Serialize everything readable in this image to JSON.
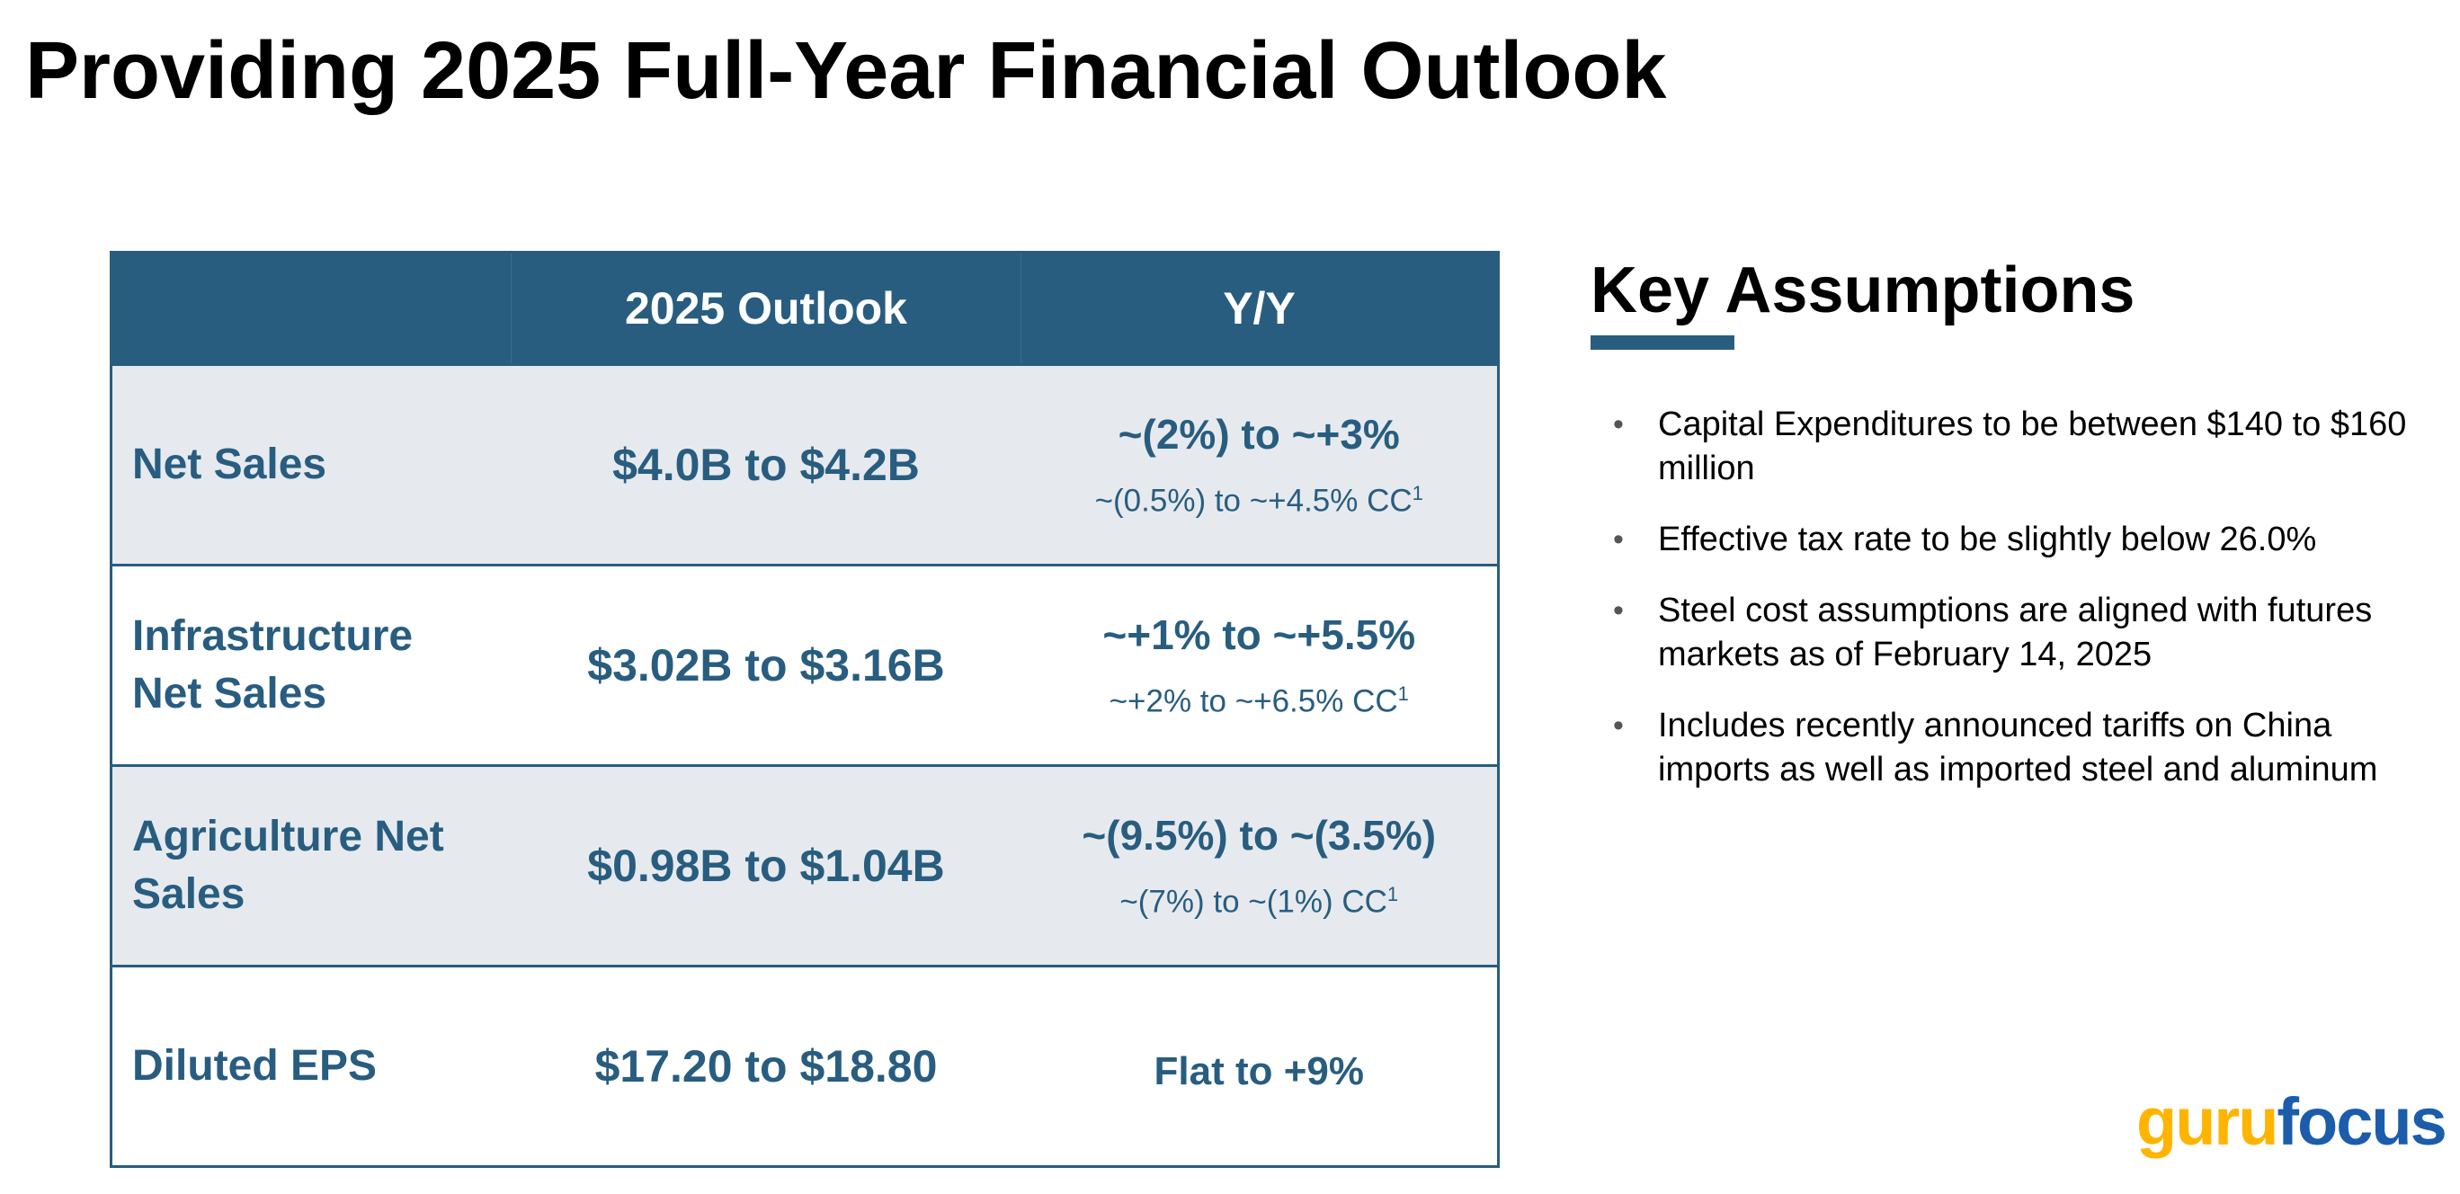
{
  "title": "Providing 2025 Full-Year Financial Outlook",
  "table": {
    "headers": [
      "",
      "2025 Outlook",
      "Y/Y"
    ],
    "rows": [
      {
        "label": "Net Sales",
        "outlook": "$4.0B to $4.2B",
        "yy": "~(2%) to ~+3%",
        "cc": "~(0.5%) to ~+4.5% CC",
        "cc_note": "1"
      },
      {
        "label": "Infrastructure Net Sales",
        "outlook": "$3.02B to $3.16B",
        "yy": "~+1% to ~+5.5%",
        "cc": "~+2% to ~+6.5% CC",
        "cc_note": "1"
      },
      {
        "label": "Agriculture Net Sales",
        "outlook": "$0.98B to $1.04B",
        "yy": "~(9.5%) to ~(3.5%)",
        "cc": "~(7%) to ~(1%) CC",
        "cc_note": "1"
      },
      {
        "label": "Diluted EPS",
        "outlook": "$17.20 to $18.80",
        "yy": "Flat to +9%"
      }
    ]
  },
  "key_assumptions": {
    "heading": "Key Assumptions",
    "items": [
      "Capital Expenditures to be between $140 to $160 million",
      "Effective tax rate to be slightly below 26.0%",
      "Steel cost assumptions are aligned with futures markets as of February 14, 2025",
      "Includes recently announced tariffs on China imports as well as imported steel and aluminum"
    ]
  },
  "logo": {
    "part1": "guru",
    "part2": "focus"
  },
  "colors": {
    "header": "#285d80",
    "alt_row": "#e6eaee",
    "logo_yellow": "#ffb400",
    "logo_blue": "#1b5dab"
  }
}
